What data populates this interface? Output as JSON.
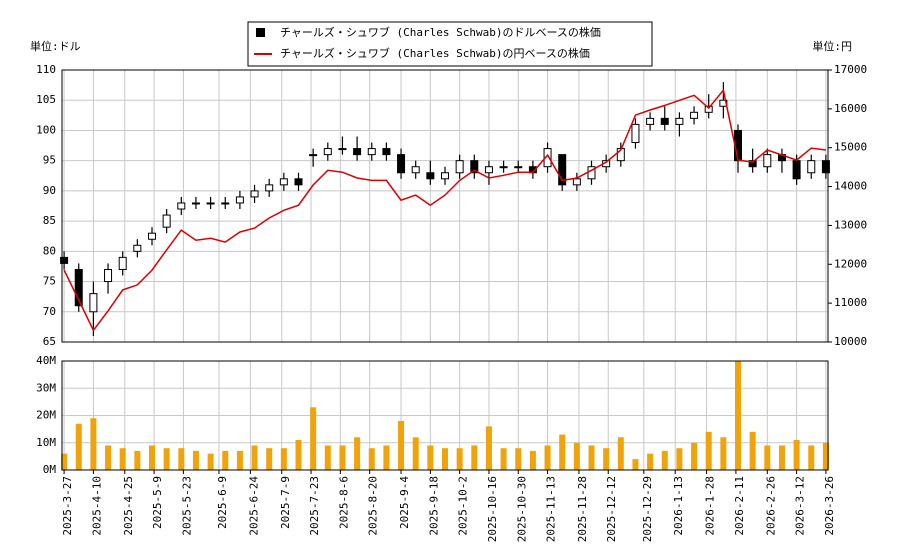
{
  "chart_data": [
    {
      "type": "candlestick",
      "ylabel": "単位:ドル",
      "y2label": "単位:円",
      "x": [
        "2025-3-27",
        "2025-4-3",
        "2025-4-10",
        "2025-4-17",
        "2025-4-24",
        "2025-5-1",
        "2025-5-8",
        "2025-5-15",
        "2025-5-22",
        "2025-5-29",
        "2025-6-5",
        "2025-6-12",
        "2025-6-19",
        "2025-6-26",
        "2025-7-3",
        "2025-7-10",
        "2025-7-17",
        "2025-7-24",
        "2025-7-31",
        "2025-8-7",
        "2025-8-14",
        "2025-8-21",
        "2025-8-28",
        "2025-9-4",
        "2025-9-11",
        "2025-9-18",
        "2025-9-25",
        "2025-10-2",
        "2025-10-9",
        "2025-10-16",
        "2025-10-23",
        "2025-10-30",
        "2025-11-6",
        "2025-11-13",
        "2025-11-20",
        "2025-11-27",
        "2025-12-4",
        "2025-12-11",
        "2025-12-18",
        "2025-12-25",
        "2026-1-1",
        "2026-1-8",
        "2026-1-15",
        "2026-1-22",
        "2026-1-29",
        "2026-2-5",
        "2026-2-12",
        "2026-2-19",
        "2026-2-26",
        "2026-3-5",
        "2026-3-12",
        "2026-3-19",
        "2026-3-26"
      ],
      "xlim": [
        "2025-3-26",
        "2026-3-27"
      ],
      "series": [
        {
          "name": "チャールズ・シュワブ (Charles Schwab)のドルベースの株価",
          "color": "#000000",
          "open": [
            79,
            77,
            70,
            75,
            77,
            80,
            82,
            84,
            87,
            88,
            88,
            88,
            88,
            89,
            90,
            91,
            92,
            96,
            96,
            97,
            97,
            96,
            97,
            96,
            93,
            93,
            92,
            93,
            95,
            93,
            94,
            94,
            94,
            94,
            96,
            91,
            92,
            94,
            95,
            98,
            101,
            102,
            101,
            102,
            103,
            104,
            100,
            95,
            94,
            96,
            95,
            93,
            95
          ],
          "high": [
            80,
            78,
            75,
            78,
            80,
            82,
            84,
            87,
            89,
            89,
            89,
            89,
            90,
            91,
            92,
            93,
            93,
            97,
            98,
            99,
            99,
            98,
            98,
            97,
            95,
            95,
            94,
            96,
            96,
            95,
            95,
            95,
            95,
            98,
            96,
            93,
            95,
            96,
            98,
            102,
            103,
            104,
            103,
            104,
            106,
            108,
            101,
            97,
            97,
            97,
            96,
            96,
            96
          ],
          "low": [
            77,
            70,
            66,
            73,
            76,
            79,
            81,
            83,
            86,
            87,
            87,
            87,
            87,
            88,
            89,
            90,
            90,
            94,
            95,
            96,
            95,
            95,
            95,
            92,
            92,
            91,
            91,
            92,
            92,
            91,
            93,
            93,
            92,
            93,
            90,
            90,
            91,
            93,
            94,
            97,
            100,
            100,
            99,
            101,
            102,
            102,
            93,
            93,
            93,
            93,
            91,
            92,
            92
          ],
          "close": [
            78,
            71,
            73,
            77,
            79,
            81,
            83,
            86,
            88,
            88,
            88,
            88,
            89,
            90,
            91,
            92,
            91,
            96,
            97,
            97,
            96,
            97,
            96,
            93,
            94,
            92,
            93,
            95,
            93,
            94,
            94,
            94,
            93,
            97,
            91,
            92,
            94,
            95,
            97,
            101,
            102,
            101,
            102,
            103,
            104,
            105,
            95,
            94,
            96,
            95,
            92,
            95,
            93
          ]
        },
        {
          "name": "チャールズ・シュワブ (Charles Schwab)の円ベースの株価",
          "color": "#dd0000",
          "axis": "y2",
          "values": [
            11850,
            11080,
            10300,
            10800,
            11340,
            11470,
            11850,
            12370,
            12880,
            12620,
            12670,
            12570,
            12830,
            12930,
            13190,
            13390,
            13520,
            14040,
            14420,
            14370,
            14220,
            14160,
            14160,
            13650,
            13780,
            13520,
            13780,
            14160,
            14420,
            14220,
            14290,
            14370,
            14370,
            14810,
            14160,
            14220,
            14420,
            14630,
            14940,
            15840,
            15970,
            16090,
            16220,
            16350,
            16020,
            16480,
            14680,
            14630,
            14940,
            14810,
            14680,
            14990,
            14940
          ]
        }
      ],
      "ylim": [
        65,
        110
      ],
      "yticks": [
        65,
        70,
        75,
        80,
        85,
        90,
        95,
        100,
        105,
        110
      ],
      "y2lim": [
        10000,
        17000
      ],
      "y2ticks": [
        10000,
        11000,
        12000,
        13000,
        14000,
        15000,
        16000,
        17000
      ],
      "grid": true
    },
    {
      "type": "bar",
      "x": [
        "2025-3-27",
        "2025-4-3",
        "2025-4-10",
        "2025-4-17",
        "2025-4-24",
        "2025-5-1",
        "2025-5-8",
        "2025-5-15",
        "2025-5-22",
        "2025-5-29",
        "2025-6-5",
        "2025-6-12",
        "2025-6-19",
        "2025-6-26",
        "2025-7-3",
        "2025-7-10",
        "2025-7-17",
        "2025-7-24",
        "2025-7-31",
        "2025-8-7",
        "2025-8-14",
        "2025-8-21",
        "2025-8-28",
        "2025-9-4",
        "2025-9-11",
        "2025-9-18",
        "2025-9-25",
        "2025-10-2",
        "2025-10-9",
        "2025-10-16",
        "2025-10-23",
        "2025-10-30",
        "2025-11-6",
        "2025-11-13",
        "2025-11-20",
        "2025-11-27",
        "2025-12-4",
        "2025-12-11",
        "2025-12-18",
        "2025-12-25",
        "2026-1-1",
        "2026-1-8",
        "2026-1-15",
        "2026-1-22",
        "2026-1-29",
        "2026-2-5",
        "2026-2-12",
        "2026-2-19",
        "2026-2-26",
        "2026-3-5",
        "2026-3-12",
        "2026-3-19",
        "2026-3-26"
      ],
      "xlim": [
        "2025-3-26",
        "2026-3-27"
      ],
      "values": [
        6000000,
        17000000,
        19000000,
        9000000,
        8000000,
        7000000,
        9000000,
        8000000,
        8000000,
        7000000,
        6000000,
        7000000,
        7000000,
        9000000,
        8000000,
        8000000,
        11000000,
        23000000,
        9000000,
        9000000,
        12000000,
        8000000,
        9000000,
        18000000,
        12000000,
        9000000,
        8000000,
        8000000,
        9000000,
        16000000,
        8000000,
        8000000,
        7000000,
        9000000,
        13000000,
        10000000,
        9000000,
        8000000,
        12000000,
        4000000,
        6000000,
        7000000,
        8000000,
        10000000,
        14000000,
        12000000,
        40000000,
        14000000,
        9000000,
        9000000,
        11000000,
        9000000,
        10000000
      ],
      "color": "#f0a30a",
      "ylim": [
        0,
        40000000
      ],
      "yticks": [
        {
          "value": 0,
          "label": "0M"
        },
        {
          "value": 10000000,
          "label": "10M"
        },
        {
          "value": 20000000,
          "label": "20M"
        },
        {
          "value": 30000000,
          "label": "30M"
        },
        {
          "value": 40000000,
          "label": "40M"
        }
      ],
      "xticks": [
        "2025-3-27",
        "2025-4-10",
        "2025-4-25",
        "2025-5-9",
        "2025-5-23",
        "2025-6-9",
        "2025-6-24",
        "2025-7-9",
        "2025-7-23",
        "2025-8-6",
        "2025-8-20",
        "2025-9-4",
        "2025-9-18",
        "2025-10-2",
        "2025-10-16",
        "2025-10-30",
        "2025-11-13",
        "2025-11-28",
        "2025-12-12",
        "2025-12-29",
        "2026-1-13",
        "2026-1-28",
        "2026-2-11",
        "2026-2-26",
        "2026-3-12",
        "2026-3-26"
      ],
      "grid": true
    }
  ]
}
